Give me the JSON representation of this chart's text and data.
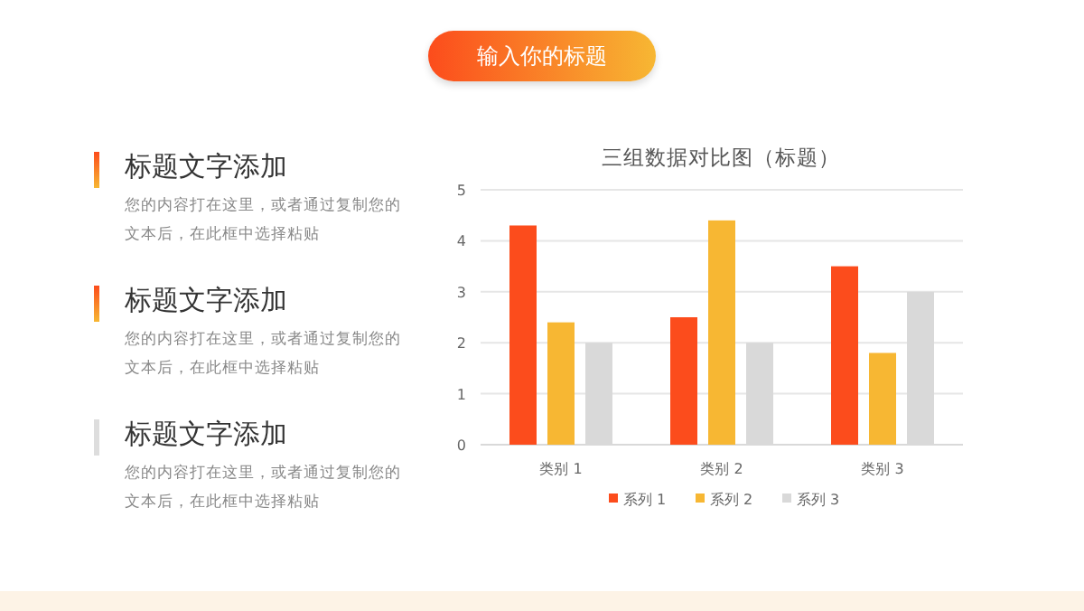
{
  "chart_data": {
    "type": "bar",
    "title": "三组数据对比图（标题）",
    "categories": [
      "类别 1",
      "类别 2",
      "类别 3"
    ],
    "series": [
      {
        "name": "系列 1",
        "color": "#fc4c1c",
        "values": [
          4.3,
          2.5,
          3.5
        ]
      },
      {
        "name": "系列 2",
        "color": "#f7b733",
        "values": [
          2.4,
          4.4,
          1.8
        ]
      },
      {
        "name": "系列 3",
        "color": "#d9d9d9",
        "values": [
          2,
          2,
          3
        ]
      }
    ],
    "ylim": [
      0,
      5
    ],
    "yticks": [
      0,
      1,
      2,
      3,
      4,
      5
    ],
    "grid": "y",
    "legend": "bottom",
    "annotations": [
      "输入你的标题",
      "标题文字添加",
      "您的内容打在这里，或者通过复制您的文本后，在此框中选择粘贴",
      "标题文字添加",
      "您的内容打在这里，或者通过复制您的文本后，在此框中选择粘贴",
      "标题文字添加",
      "您的内容打在这里，或者通过复制您的文本后，在此框中选择粘贴"
    ]
  }
}
